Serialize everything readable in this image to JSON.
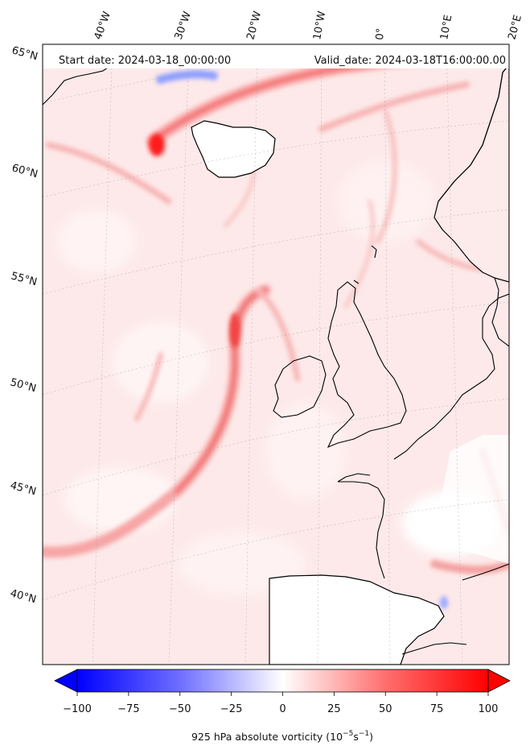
{
  "header": {
    "start_date": "Start date: 2024-03-18_00:00:00",
    "valid_date": "Valid_date: 2024-03-18T16:00:00.00"
  },
  "longitude_labels": [
    "40°W",
    "30°W",
    "20°W",
    "10°W",
    "0°",
    "10°E",
    "20°E"
  ],
  "latitude_labels": [
    "65°N",
    "60°N",
    "55°N",
    "50°N",
    "45°N",
    "40°N"
  ],
  "colorbar": {
    "ticks": [
      "−100",
      "−75",
      "−50",
      "−25",
      "0",
      "25",
      "50",
      "75",
      "100"
    ],
    "label_main": "925 hPa absolute vorticity (10",
    "label_exp1": "−5",
    "label_mid": "s",
    "label_exp2": "−1",
    "label_end": ")",
    "min_color": "#0000ff",
    "mid_color": "#ffffff",
    "max_color": "#ff0000"
  },
  "colors": {
    "field_background": "#fde9e9",
    "coastline": "#000000",
    "land_no_data": "#ffffff"
  }
}
